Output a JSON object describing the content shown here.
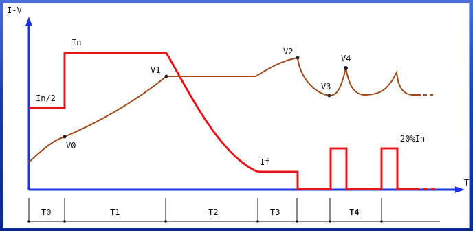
{
  "axes": {
    "y_label": "I-V",
    "x_label": "T"
  },
  "current_labels": {
    "in": "In",
    "in_half": "In/2",
    "if": "If",
    "pulse": "20%In"
  },
  "voltage_labels": {
    "v0": "V0",
    "v1": "V1",
    "v2": "V2",
    "v3": "V3",
    "v4": "V4",
    "ellipsis": "..."
  },
  "intervals": [
    {
      "id": "t0",
      "label": "T0"
    },
    {
      "id": "t1",
      "label": "T1"
    },
    {
      "id": "t2",
      "label": "T2"
    },
    {
      "id": "t3",
      "label": "T3"
    },
    {
      "id": "t4",
      "label": "T4"
    }
  ],
  "colors": {
    "axis": "#1a33e6",
    "current": "#e8141a",
    "voltage": "#9b4a1c",
    "frame": "#0d2a8f"
  }
}
